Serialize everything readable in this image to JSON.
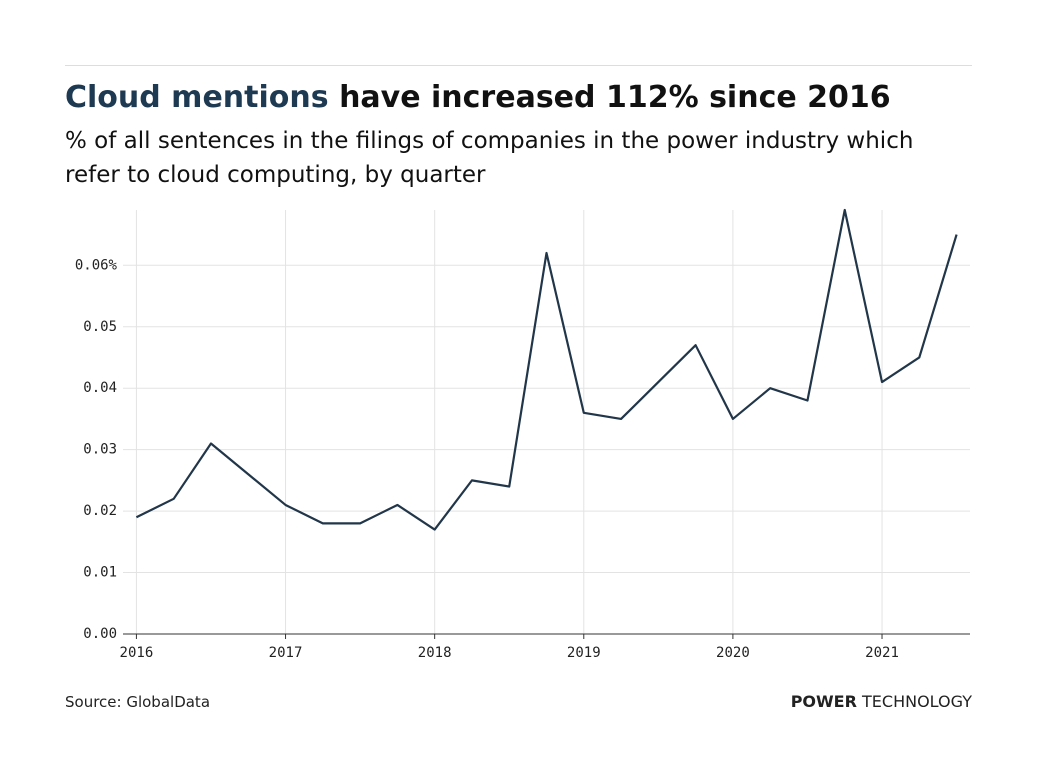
{
  "chart_data": {
    "type": "line",
    "title_highlight": "Cloud mentions",
    "title": "have increased 112% since 2016",
    "subtitle": "% of all sentences in the filings of companies in the power industry which refer to cloud computing, by quarter",
    "source": "Source: GlobalData",
    "brand_bold": "POWER",
    "brand": "TECHNOLOGY",
    "x": [
      2016,
      2016.25,
      2016.5,
      2016.75,
      2017,
      2017.25,
      2017.5,
      2017.75,
      2018,
      2018.25,
      2018.5,
      2018.75,
      2019,
      2019.25,
      2019.5,
      2019.75,
      2020,
      2020.25,
      2020.5,
      2020.75,
      2021,
      2021.25,
      2021.5
    ],
    "series": [
      {
        "color": "#22364a",
        "values": [
          0.019,
          0.022,
          0.031,
          0.026,
          0.021,
          0.018,
          0.018,
          0.021,
          0.017,
          0.025,
          0.024,
          0.062,
          0.036,
          0.035,
          0.041,
          0.047,
          0.035,
          0.04,
          0.038,
          0.069,
          0.041,
          0.045,
          0.065
        ]
      }
    ],
    "xlim": [
      2015.91,
      2021.59
    ],
    "xticks": [
      2016,
      2017,
      2018,
      2019,
      2020,
      2021
    ],
    "ylim": [
      0,
      0.069
    ],
    "yticks": [
      {
        "value": 0,
        "label": "0.00"
      },
      0.01,
      0.02,
      0.03,
      0.04,
      0.05,
      {
        "value": 0.06,
        "label": "0.06%"
      }
    ],
    "grid": true
  }
}
